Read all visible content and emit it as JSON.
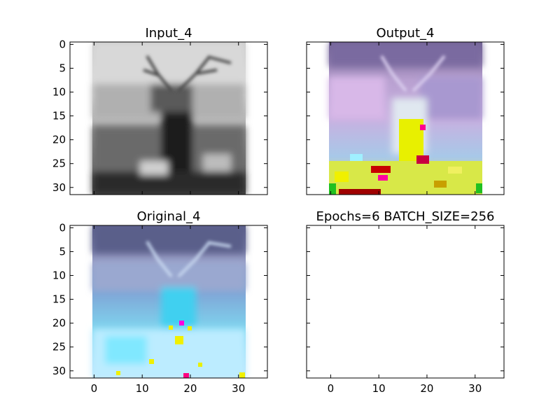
{
  "chart_data": [
    {
      "type": "image",
      "title": "Input_4",
      "show_x_ticklabels": false,
      "show_y_ticklabels": true,
      "x_ticks": [
        0,
        10,
        20,
        30
      ],
      "y_ticks": [
        0,
        5,
        10,
        15,
        20,
        25,
        30
      ],
      "xlim": [
        -5,
        36
      ],
      "ylim": [
        31.5,
        -0.5
      ],
      "image_extent": [
        -0.5,
        31.5
      ],
      "image_style": "grayscale"
    },
    {
      "type": "image",
      "title": "Output_4",
      "show_x_ticklabels": false,
      "show_y_ticklabels": false,
      "x_ticks": [
        0,
        10,
        20,
        30
      ],
      "y_ticks": [
        0,
        5,
        10,
        15,
        20,
        25,
        30
      ],
      "xlim": [
        -5,
        36
      ],
      "ylim": [
        31.5,
        -0.5
      ],
      "image_extent": [
        -0.5,
        31.5
      ],
      "image_style": "output"
    },
    {
      "type": "image",
      "title": "Original_4",
      "show_x_ticklabels": true,
      "show_y_ticklabels": true,
      "x_ticks": [
        0,
        10,
        20,
        30
      ],
      "y_ticks": [
        0,
        5,
        10,
        15,
        20,
        25,
        30
      ],
      "xlim": [
        -5,
        36
      ],
      "ylim": [
        31.5,
        -0.5
      ],
      "image_extent": [
        -0.5,
        31.5
      ],
      "image_style": "original"
    },
    {
      "type": "empty",
      "title": "Epochs=6 BATCH_SIZE=256",
      "show_x_ticklabels": true,
      "show_y_ticklabels": false,
      "x_ticks": [
        0,
        10,
        20,
        30
      ],
      "y_ticks": [
        0,
        5,
        10,
        15,
        20,
        25,
        30
      ],
      "xlim": [
        -5,
        36
      ],
      "ylim": [
        31.5,
        -0.5
      ]
    }
  ]
}
